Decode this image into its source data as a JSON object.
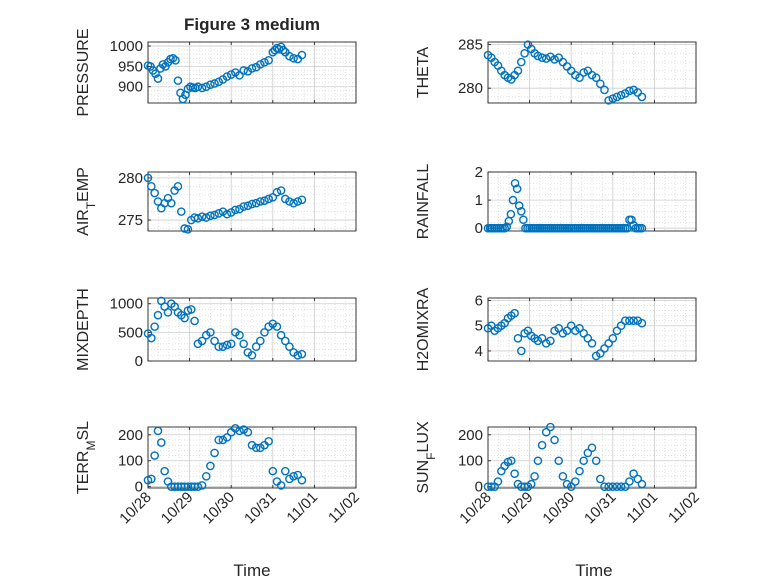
{
  "title": "Figure 3 medium",
  "xlabel": "Time",
  "x_tick_labels": [
    "10/28",
    "10/29",
    "10/30",
    "10/31",
    "11/01",
    "11/02"
  ],
  "colors": {
    "marker": "#0072BD",
    "grid": "#dcdcdc",
    "axis": "#262626"
  },
  "chart_data": [
    {
      "type": "scatter",
      "panel": "PRESSURE",
      "ylabel": "PRESSURE",
      "ylim": [
        860,
        1010
      ],
      "yticks": [
        900,
        950,
        1000
      ],
      "y_tick_labels": [
        "900",
        "950",
        "1000"
      ],
      "x": [
        0.0,
        0.06,
        0.12,
        0.18,
        0.24,
        0.3,
        0.36,
        0.42,
        0.48,
        0.54,
        0.6,
        0.66,
        0.72,
        0.78,
        0.84,
        0.9,
        0.96,
        1.02,
        1.08,
        1.14,
        1.2,
        1.3,
        1.4,
        1.5,
        1.6,
        1.7,
        1.8,
        1.9,
        2.0,
        2.1,
        2.2,
        2.3,
        2.4,
        2.5,
        2.6,
        2.7,
        2.8,
        2.9,
        3.0,
        3.05,
        3.1,
        3.15,
        3.2,
        3.25,
        3.3,
        3.4,
        3.5,
        3.6,
        3.7
      ],
      "y": [
        952,
        950,
        940,
        932,
        920,
        945,
        955,
        950,
        960,
        968,
        970,
        965,
        915,
        885,
        870,
        880,
        895,
        900,
        898,
        897,
        900,
        897,
        900,
        905,
        908,
        912,
        918,
        925,
        930,
        935,
        928,
        940,
        938,
        945,
        948,
        955,
        960,
        965,
        985,
        990,
        995,
        992,
        998,
        990,
        985,
        975,
        970,
        968,
        978
      ]
    },
    {
      "type": "scatter",
      "panel": "THETA",
      "ylabel": "THETA",
      "ylim": [
        278.3,
        285.3
      ],
      "yticks": [
        280,
        285
      ],
      "y_tick_labels": [
        "280",
        "285"
      ],
      "x": [
        0.0,
        0.08,
        0.16,
        0.24,
        0.32,
        0.4,
        0.48,
        0.56,
        0.64,
        0.72,
        0.8,
        0.88,
        0.96,
        1.04,
        1.12,
        1.2,
        1.3,
        1.4,
        1.5,
        1.6,
        1.7,
        1.8,
        1.9,
        2.0,
        2.1,
        2.2,
        2.3,
        2.4,
        2.5,
        2.6,
        2.7,
        2.8,
        2.9,
        3.0,
        3.1,
        3.2,
        3.3,
        3.4,
        3.5,
        3.6,
        3.7
      ],
      "y": [
        283.8,
        283.5,
        283.0,
        282.6,
        282.0,
        281.5,
        281.2,
        281.0,
        281.5,
        282.0,
        283.0,
        284.0,
        285.0,
        284.5,
        284.0,
        283.7,
        283.5,
        283.4,
        283.6,
        283.3,
        283.5,
        283.0,
        282.5,
        282.0,
        281.5,
        281.2,
        281.8,
        282.0,
        281.5,
        281.2,
        280.5,
        279.8,
        278.6,
        278.8,
        279.0,
        279.2,
        279.4,
        279.7,
        279.8,
        279.5,
        279.0
      ]
    },
    {
      "type": "scatter",
      "panel": "AIR_TEMP",
      "ylabel": "AIR_TEMP",
      "ylim": [
        273.7,
        280.7
      ],
      "yticks": [
        275,
        280
      ],
      "y_tick_labels": [
        "275",
        "280"
      ],
      "x": [
        0.0,
        0.08,
        0.16,
        0.24,
        0.32,
        0.4,
        0.48,
        0.56,
        0.64,
        0.72,
        0.8,
        0.88,
        0.96,
        1.04,
        1.12,
        1.2,
        1.3,
        1.4,
        1.5,
        1.6,
        1.7,
        1.8,
        1.9,
        2.0,
        2.1,
        2.2,
        2.3,
        2.4,
        2.5,
        2.6,
        2.7,
        2.8,
        2.9,
        3.0,
        3.1,
        3.2,
        3.3,
        3.4,
        3.5,
        3.6,
        3.7
      ],
      "y": [
        280.0,
        279.0,
        278.2,
        277.2,
        276.4,
        277.0,
        277.6,
        277.0,
        278.5,
        279.0,
        276.0,
        274.0,
        273.9,
        275.0,
        275.3,
        275.2,
        275.4,
        275.3,
        275.5,
        275.6,
        275.8,
        276.0,
        275.7,
        275.9,
        276.2,
        276.3,
        276.6,
        276.7,
        276.9,
        277.0,
        277.2,
        277.3,
        277.5,
        277.7,
        278.3,
        278.5,
        277.5,
        277.2,
        277.0,
        277.2,
        277.4
      ]
    },
    {
      "type": "scatter",
      "panel": "RAINFALL",
      "ylabel": "RAINFALL",
      "ylim": [
        -0.1,
        2.0
      ],
      "yticks": [
        0,
        1,
        2
      ],
      "y_tick_labels": [
        "0",
        "1",
        "2"
      ],
      "x": [
        0.0,
        0.05,
        0.1,
        0.15,
        0.2,
        0.25,
        0.3,
        0.35,
        0.4,
        0.45,
        0.5,
        0.55,
        0.6,
        0.65,
        0.7,
        0.75,
        0.8,
        0.85,
        0.9,
        0.95,
        1.0,
        1.05,
        1.1,
        1.15,
        1.2,
        1.25,
        1.3,
        1.35,
        1.4,
        1.45,
        1.5,
        1.55,
        1.6,
        1.65,
        1.7,
        1.75,
        1.8,
        1.85,
        1.9,
        1.95,
        2.0,
        2.05,
        2.1,
        2.15,
        2.2,
        2.25,
        2.3,
        2.35,
        2.4,
        2.45,
        2.5,
        2.55,
        2.6,
        2.65,
        2.7,
        2.75,
        2.8,
        2.85,
        2.9,
        2.95,
        3.0,
        3.05,
        3.1,
        3.15,
        3.2,
        3.25,
        3.3,
        3.35,
        3.4,
        3.45,
        3.5,
        3.55,
        3.6,
        3.65,
        3.7
      ],
      "y": [
        0,
        0,
        0,
        0,
        0,
        0,
        0,
        0,
        0,
        0.05,
        0.25,
        0.5,
        1.0,
        1.6,
        1.4,
        0.8,
        0.6,
        0.3,
        0,
        0,
        0,
        0,
        0,
        0,
        0,
        0,
        0,
        0,
        0,
        0,
        0,
        0,
        0,
        0,
        0,
        0,
        0,
        0,
        0,
        0,
        0,
        0,
        0,
        0,
        0,
        0,
        0,
        0,
        0,
        0,
        0,
        0,
        0,
        0,
        0,
        0,
        0,
        0,
        0,
        0,
        0,
        0,
        0,
        0,
        0,
        0,
        0,
        0,
        0.3,
        0.3,
        0.1,
        0,
        0,
        0,
        0
      ]
    },
    {
      "type": "scatter",
      "panel": "MIXDEPTH",
      "ylabel": "MIXDEPTH",
      "ylim": [
        0,
        1100
      ],
      "yticks": [
        0,
        500,
        1000
      ],
      "y_tick_labels": [
        "0",
        "500",
        "1000"
      ],
      "x": [
        0.0,
        0.08,
        0.16,
        0.24,
        0.32,
        0.4,
        0.48,
        0.56,
        0.64,
        0.72,
        0.8,
        0.88,
        0.96,
        1.04,
        1.12,
        1.2,
        1.3,
        1.4,
        1.5,
        1.6,
        1.7,
        1.8,
        1.9,
        2.0,
        2.1,
        2.2,
        2.3,
        2.4,
        2.5,
        2.6,
        2.7,
        2.8,
        2.9,
        3.0,
        3.1,
        3.2,
        3.3,
        3.4,
        3.5,
        3.6,
        3.7
      ],
      "y": [
        480,
        400,
        600,
        800,
        1050,
        950,
        850,
        1000,
        950,
        850,
        800,
        750,
        880,
        900,
        700,
        300,
        350,
        450,
        500,
        350,
        250,
        250,
        280,
        300,
        500,
        450,
        300,
        150,
        100,
        250,
        350,
        500,
        600,
        650,
        600,
        450,
        350,
        250,
        150,
        100,
        120
      ]
    },
    {
      "type": "scatter",
      "panel": "H2OMIXRA",
      "ylabel": "H2OMIXRA",
      "ylim": [
        3.6,
        6.1
      ],
      "yticks": [
        4,
        5,
        6
      ],
      "y_tick_labels": [
        "4",
        "5",
        "6"
      ],
      "x": [
        0.0,
        0.08,
        0.16,
        0.24,
        0.32,
        0.4,
        0.48,
        0.56,
        0.64,
        0.72,
        0.8,
        0.88,
        0.96,
        1.04,
        1.12,
        1.2,
        1.3,
        1.4,
        1.5,
        1.6,
        1.7,
        1.8,
        1.9,
        2.0,
        2.1,
        2.2,
        2.3,
        2.4,
        2.5,
        2.6,
        2.7,
        2.8,
        2.9,
        3.0,
        3.1,
        3.2,
        3.3,
        3.4,
        3.5,
        3.6,
        3.7
      ],
      "y": [
        4.9,
        5.0,
        4.8,
        4.9,
        5.0,
        5.1,
        5.3,
        5.4,
        5.5,
        4.5,
        4.0,
        4.7,
        4.8,
        4.6,
        4.5,
        4.4,
        4.5,
        4.3,
        4.4,
        4.8,
        4.9,
        4.7,
        4.8,
        5.0,
        4.8,
        4.9,
        4.7,
        4.5,
        4.3,
        3.8,
        3.9,
        4.1,
        4.3,
        4.5,
        4.8,
        5.0,
        5.2,
        5.2,
        5.2,
        5.2,
        5.1
      ]
    },
    {
      "type": "scatter",
      "panel": "TERR_MSL",
      "ylabel": "TERR_MSL",
      "ylim": [
        -5,
        230
      ],
      "yticks": [
        0,
        100,
        200
      ],
      "y_tick_labels": [
        "0",
        "100",
        "200"
      ],
      "x": [
        0.0,
        0.08,
        0.16,
        0.24,
        0.32,
        0.4,
        0.48,
        0.56,
        0.64,
        0.72,
        0.8,
        0.88,
        0.96,
        1.04,
        1.12,
        1.2,
        1.3,
        1.4,
        1.5,
        1.6,
        1.7,
        1.8,
        1.9,
        2.0,
        2.1,
        2.2,
        2.3,
        2.4,
        2.5,
        2.6,
        2.7,
        2.8,
        2.9,
        3.0,
        3.1,
        3.2,
        3.3,
        3.4,
        3.5,
        3.6,
        3.7
      ],
      "y": [
        25,
        30,
        120,
        215,
        170,
        60,
        20,
        0,
        0,
        0,
        0,
        0,
        0,
        0,
        0,
        0,
        5,
        40,
        80,
        130,
        180,
        180,
        190,
        210,
        225,
        215,
        220,
        210,
        160,
        150,
        150,
        160,
        175,
        60,
        20,
        5,
        60,
        30,
        40,
        45,
        25
      ]
    },
    {
      "type": "scatter",
      "panel": "SUN_FLUX",
      "ylabel": "SUN_FLUX",
      "ylim": [
        -5,
        230
      ],
      "yticks": [
        0,
        100,
        200
      ],
      "y_tick_labels": [
        "0",
        "100",
        "200"
      ],
      "x": [
        0.0,
        0.08,
        0.16,
        0.24,
        0.32,
        0.4,
        0.48,
        0.56,
        0.64,
        0.72,
        0.8,
        0.88,
        0.96,
        1.04,
        1.12,
        1.2,
        1.3,
        1.4,
        1.5,
        1.6,
        1.7,
        1.8,
        1.9,
        2.0,
        2.1,
        2.2,
        2.3,
        2.4,
        2.5,
        2.6,
        2.7,
        2.8,
        2.9,
        3.0,
        3.1,
        3.2,
        3.3,
        3.4,
        3.5,
        3.6,
        3.7
      ],
      "y": [
        0,
        0,
        0,
        20,
        60,
        80,
        95,
        100,
        50,
        10,
        0,
        0,
        0,
        10,
        40,
        100,
        160,
        210,
        230,
        180,
        100,
        40,
        10,
        0,
        20,
        60,
        100,
        130,
        150,
        100,
        30,
        0,
        0,
        0,
        0,
        0,
        0,
        20,
        50,
        30,
        10
      ]
    }
  ]
}
